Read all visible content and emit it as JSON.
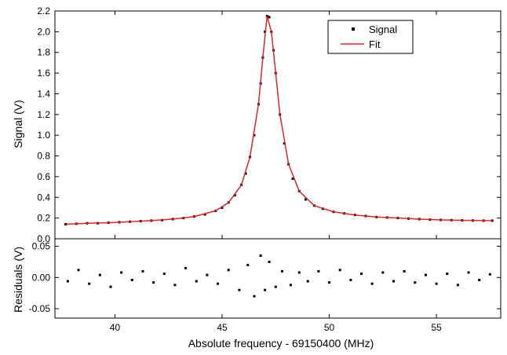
{
  "chart_data": [
    {
      "type": "scatter",
      "panel": "main",
      "xlabel": "",
      "ylabel": "Signal (V)",
      "xlim": [
        37.2,
        58.0
      ],
      "ylim": [
        0.0,
        2.2
      ],
      "y_ticks": [
        0.0,
        0.2,
        0.4,
        0.6,
        0.8,
        1.0,
        1.2,
        1.4,
        1.6,
        1.8,
        2.0,
        2.2
      ],
      "y_tick_labels": [
        "0.0",
        "0.2",
        "0.4",
        "0.6",
        "0.8",
        "1.0",
        "1.2",
        "1.4",
        "1.6",
        "1.8",
        "2.0",
        "2.2"
      ],
      "x_ticks": [
        40,
        45,
        50,
        55
      ],
      "legend_position": "top-right",
      "series": [
        {
          "name": "Signal",
          "style": "square markers",
          "color": "#000000",
          "x": [
            37.7,
            38.2,
            38.7,
            39.2,
            39.7,
            40.2,
            40.7,
            41.2,
            41.7,
            42.2,
            42.7,
            43.2,
            43.7,
            44.2,
            44.7,
            45.0,
            45.3,
            45.6,
            45.9,
            46.1,
            46.3,
            46.5,
            46.7,
            46.8,
            46.9,
            47.0,
            47.1,
            47.2,
            47.3,
            47.4,
            47.5,
            47.7,
            47.9,
            48.1,
            48.3,
            48.6,
            48.9,
            49.3,
            49.7,
            50.2,
            50.7,
            51.2,
            51.7,
            52.2,
            52.7,
            53.2,
            53.7,
            54.2,
            54.7,
            55.2,
            55.7,
            56.2,
            56.7,
            57.2,
            57.6
          ],
          "y": [
            0.14,
            0.145,
            0.15,
            0.15,
            0.155,
            0.16,
            0.165,
            0.17,
            0.175,
            0.18,
            0.19,
            0.2,
            0.215,
            0.235,
            0.27,
            0.3,
            0.35,
            0.42,
            0.52,
            0.63,
            0.79,
            1.0,
            1.3,
            1.5,
            1.75,
            2.0,
            2.15,
            2.14,
            2.0,
            1.82,
            1.6,
            1.2,
            0.92,
            0.72,
            0.58,
            0.46,
            0.38,
            0.32,
            0.29,
            0.26,
            0.245,
            0.23,
            0.22,
            0.21,
            0.205,
            0.2,
            0.195,
            0.19,
            0.185,
            0.182,
            0.18,
            0.178,
            0.176,
            0.175,
            0.175
          ]
        },
        {
          "name": "Fit",
          "style": "line",
          "color": "#d62728",
          "x": [
            37.7,
            38.7,
            39.7,
            40.7,
            41.7,
            42.7,
            43.7,
            44.7,
            45.3,
            45.9,
            46.3,
            46.7,
            46.9,
            47.1,
            47.3,
            47.5,
            47.7,
            48.1,
            48.6,
            49.3,
            50.2,
            51.2,
            52.2,
            53.2,
            54.2,
            55.2,
            56.2,
            57.6
          ],
          "y": [
            0.14,
            0.15,
            0.155,
            0.165,
            0.175,
            0.19,
            0.215,
            0.27,
            0.35,
            0.52,
            0.79,
            1.3,
            1.75,
            2.15,
            2.0,
            1.6,
            1.2,
            0.72,
            0.46,
            0.32,
            0.26,
            0.23,
            0.21,
            0.2,
            0.19,
            0.182,
            0.178,
            0.175
          ]
        }
      ]
    },
    {
      "type": "scatter",
      "panel": "residuals",
      "xlabel": "Absolute frequency - 69150400 (MHz)",
      "ylabel": "Residuals (V)",
      "xlim": [
        37.2,
        58.0
      ],
      "ylim": [
        -0.065,
        0.062
      ],
      "y_ticks": [
        -0.05,
        0.0,
        0.05
      ],
      "y_tick_labels": [
        "-0.05",
        "0.00",
        "0.05"
      ],
      "x_ticks": [
        40,
        45,
        50,
        55
      ],
      "x_tick_labels": [
        "40",
        "45",
        "50",
        "55"
      ],
      "series": [
        {
          "color": "#000000",
          "x": [
            37.8,
            38.3,
            38.8,
            39.3,
            39.8,
            40.3,
            40.8,
            41.3,
            41.8,
            42.3,
            42.8,
            43.3,
            43.8,
            44.3,
            44.8,
            45.3,
            45.8,
            46.2,
            46.5,
            46.8,
            47.0,
            47.2,
            47.5,
            47.8,
            48.2,
            48.6,
            49.0,
            49.5,
            50.0,
            50.5,
            51.0,
            51.5,
            52.0,
            52.5,
            53.0,
            53.5,
            54.0,
            54.5,
            55.0,
            55.5,
            56.0,
            56.5,
            57.0,
            57.5
          ],
          "y": [
            -0.006,
            0.012,
            -0.01,
            0.004,
            -0.015,
            0.008,
            -0.004,
            0.01,
            -0.008,
            0.006,
            -0.012,
            0.015,
            -0.006,
            0.004,
            -0.01,
            0.012,
            -0.02,
            0.02,
            -0.03,
            0.035,
            -0.02,
            0.025,
            -0.015,
            0.01,
            -0.012,
            0.008,
            -0.006,
            0.01,
            -0.008,
            0.012,
            -0.004,
            0.006,
            -0.01,
            0.008,
            -0.006,
            0.01,
            -0.008,
            0.004,
            -0.01,
            0.006,
            -0.012,
            0.008,
            -0.004,
            0.005
          ]
        }
      ]
    }
  ],
  "legend": {
    "items": [
      {
        "name": "Signal",
        "label": "Signal"
      },
      {
        "name": "Fit",
        "label": "Fit"
      }
    ]
  }
}
